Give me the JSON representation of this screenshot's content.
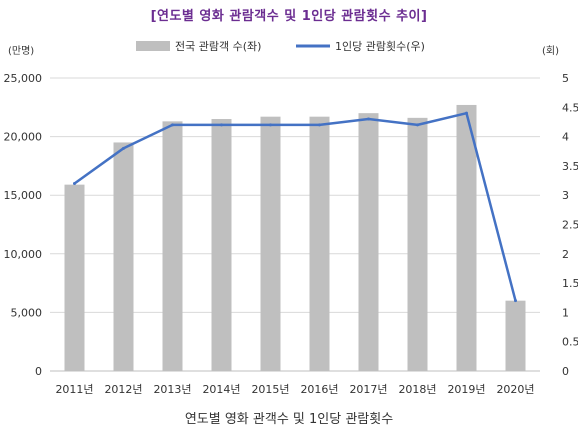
{
  "chart_data": {
    "type": "bar",
    "title": "[연도별 영화 관람객수 및 1인당 관람횟수 추이]",
    "caption": "연도별 영화 관객수 및 1인당 관람횟수",
    "categories": [
      "2011년",
      "2012년",
      "2013년",
      "2014년",
      "2015년",
      "2016년",
      "2017년",
      "2018년",
      "2019년",
      "2020년"
    ],
    "series": [
      {
        "name": "전국 관람객 수(좌)",
        "type": "bar",
        "axis": "left",
        "color": "#bfbfbf",
        "values": [
          15900,
          19500,
          21300,
          21500,
          21700,
          21700,
          22000,
          21600,
          22700,
          6000
        ]
      },
      {
        "name": "1인당 관람횟수(우)",
        "type": "line",
        "axis": "right",
        "color": "#4472c4",
        "values": [
          3.2,
          3.8,
          4.2,
          4.2,
          4.2,
          4.2,
          4.3,
          4.2,
          4.4,
          1.2
        ]
      }
    ],
    "y_left": {
      "unit_label": "(만명)",
      "ylim": [
        0,
        25000
      ],
      "ticks": [
        0,
        5000,
        10000,
        15000,
        20000,
        25000
      ],
      "tick_labels": [
        "0",
        "5,000",
        "10,000",
        "15,000",
        "20,000",
        "25,000"
      ]
    },
    "y_right": {
      "unit_label": "(회)",
      "ylim": [
        0,
        5
      ],
      "ticks": [
        0,
        0.5,
        1,
        1.5,
        2,
        2.5,
        3,
        3.5,
        4,
        4.5,
        5
      ],
      "tick_labels": [
        "0",
        "0.5",
        "1",
        "1.5",
        "2",
        "2.5",
        "3",
        "3.5",
        "4",
        "4.5",
        "5"
      ]
    },
    "grid": "horizontal",
    "legend_position": "top-center"
  }
}
